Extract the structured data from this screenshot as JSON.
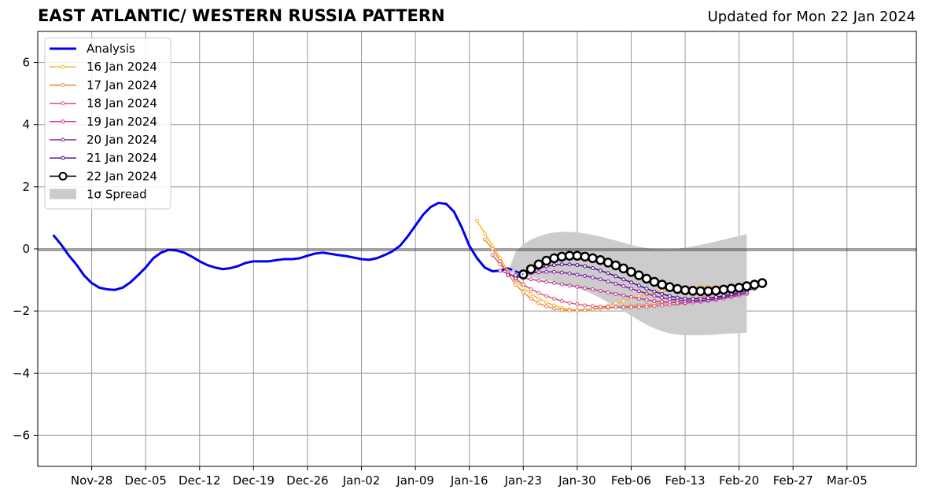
{
  "title": "EAST ATLANTIC/ WESTERN RUSSIA PATTERN",
  "subtitle": "Updated for Mon 22 Jan 2024",
  "chart_data": {
    "type": "line",
    "title": "EAST ATLANTIC/ WESTERN RUSSIA PATTERN",
    "subtitle": "Updated for Mon 22 Jan 2024",
    "xlabel": "",
    "ylabel": "",
    "x_start": "2023-11-21",
    "x_end": "2024-03-14",
    "ylim": [
      -7,
      7
    ],
    "yticks": [
      -6,
      -4,
      -2,
      0,
      2,
      4,
      6
    ],
    "xticks": [
      {
        "label": "Nov-28",
        "date": "2023-11-28"
      },
      {
        "label": "Dec-05",
        "date": "2023-12-05"
      },
      {
        "label": "Dec-12",
        "date": "2023-12-12"
      },
      {
        "label": "Dec-19",
        "date": "2023-12-19"
      },
      {
        "label": "Dec-26",
        "date": "2023-12-26"
      },
      {
        "label": "Jan-02",
        "date": "2024-01-02"
      },
      {
        "label": "Jan-09",
        "date": "2024-01-09"
      },
      {
        "label": "Jan-16",
        "date": "2024-01-16"
      },
      {
        "label": "Jan-23",
        "date": "2024-01-23"
      },
      {
        "label": "Jan-30",
        "date": "2024-01-30"
      },
      {
        "label": "Feb-06",
        "date": "2024-02-06"
      },
      {
        "label": "Feb-13",
        "date": "2024-02-13"
      },
      {
        "label": "Feb-20",
        "date": "2024-02-20"
      },
      {
        "label": "Feb-27",
        "date": "2024-02-27"
      },
      {
        "label": "Mar-05",
        "date": "2024-03-05"
      }
    ],
    "grid": true,
    "legend_position": "top-left",
    "analysis": {
      "name": "Analysis",
      "color": "#0000ee",
      "start_date": "2023-11-23",
      "values": [
        0.45,
        0.15,
        -0.2,
        -0.5,
        -0.85,
        -1.1,
        -1.25,
        -1.3,
        -1.32,
        -1.25,
        -1.08,
        -0.85,
        -0.6,
        -0.3,
        -0.12,
        -0.03,
        -0.05,
        -0.12,
        -0.25,
        -0.4,
        -0.52,
        -0.6,
        -0.65,
        -0.62,
        -0.55,
        -0.45,
        -0.4,
        -0.4,
        -0.4,
        -0.36,
        -0.33,
        -0.33,
        -0.3,
        -0.22,
        -0.15,
        -0.12,
        -0.16,
        -0.2,
        -0.23,
        -0.28,
        -0.33,
        -0.35,
        -0.3,
        -0.2,
        -0.08,
        0.1,
        0.4,
        0.75,
        1.1,
        1.35,
        1.48,
        1.45,
        1.2,
        0.7,
        0.1,
        -0.3,
        -0.6,
        -0.72,
        -0.7,
        -0.62
      ]
    },
    "spread": {
      "name": "1σ Spread",
      "color": "#cccccc",
      "start_date": "2024-01-21",
      "upper": [
        -0.75,
        -0.1,
        0.15,
        0.3,
        0.4,
        0.48,
        0.53,
        0.55,
        0.55,
        0.53,
        0.5,
        0.45,
        0.4,
        0.33,
        0.27,
        0.2,
        0.13,
        0.07,
        0.03,
        0.0,
        -0.02,
        -0.02,
        0.0,
        0.04,
        0.08,
        0.13,
        0.18,
        0.24,
        0.3,
        0.36,
        0.42,
        0.48
      ],
      "lower": [
        -0.75,
        -0.8,
        -0.85,
        -0.9,
        -0.95,
        -1.0,
        -1.05,
        -1.12,
        -1.18,
        -1.26,
        -1.35,
        -1.46,
        -1.58,
        -1.72,
        -1.86,
        -2.0,
        -2.15,
        -2.3,
        -2.44,
        -2.56,
        -2.65,
        -2.72,
        -2.76,
        -2.78,
        -2.78,
        -2.78,
        -2.77,
        -2.76,
        -2.74,
        -2.72,
        -2.71,
        -2.7
      ]
    },
    "series": [
      {
        "name": "16 Jan 2024",
        "color": "#f7b731",
        "start_date": "2024-01-17",
        "values": [
          0.9,
          0.5,
          0.1,
          -0.3,
          -0.7,
          -1.0,
          -1.25,
          -1.45,
          -1.6,
          -1.72,
          -1.82,
          -1.9,
          -1.95,
          -1.97,
          -1.96,
          -1.93,
          -1.88,
          -1.82,
          -1.75,
          -1.68,
          -1.6,
          -1.53,
          -1.46,
          -1.4,
          -1.35,
          -1.3,
          -1.27,
          -1.25,
          -1.24,
          -1.23,
          -1.22,
          -1.22,
          -1.22
        ]
      },
      {
        "name": "17 Jan 2024",
        "color": "#ee8844",
        "start_date": "2024-01-18",
        "values": [
          0.3,
          0.0,
          -0.4,
          -0.8,
          -1.15,
          -1.4,
          -1.6,
          -1.75,
          -1.85,
          -1.92,
          -1.96,
          -1.98,
          -1.98,
          -1.97,
          -1.95,
          -1.92,
          -1.9,
          -1.88,
          -1.86,
          -1.84,
          -1.82,
          -1.8,
          -1.78,
          -1.75,
          -1.72,
          -1.68,
          -1.64,
          -1.6,
          -1.55,
          -1.5,
          -1.45,
          -1.4,
          -1.36
        ]
      },
      {
        "name": "18 Jan 2024",
        "color": "#dd5577",
        "start_date": "2024-01-19",
        "values": [
          -0.2,
          -0.5,
          -0.75,
          -0.95,
          -1.15,
          -1.3,
          -1.42,
          -1.52,
          -1.6,
          -1.68,
          -1.74,
          -1.78,
          -1.82,
          -1.84,
          -1.86,
          -1.87,
          -1.88,
          -1.88,
          -1.88,
          -1.87,
          -1.86,
          -1.84,
          -1.82,
          -1.8,
          -1.78,
          -1.75,
          -1.72,
          -1.68,
          -1.64,
          -1.6,
          -1.56,
          -1.52,
          -1.48
        ]
      },
      {
        "name": "19 Jan 2024",
        "color": "#c03a90",
        "start_date": "2024-01-20",
        "values": [
          -0.7,
          -0.8,
          -0.88,
          -0.94,
          -0.98,
          -1.02,
          -1.06,
          -1.1,
          -1.14,
          -1.18,
          -1.22,
          -1.26,
          -1.3,
          -1.35,
          -1.4,
          -1.45,
          -1.5,
          -1.55,
          -1.6,
          -1.64,
          -1.68,
          -1.7,
          -1.72,
          -1.73,
          -1.73,
          -1.72,
          -1.7,
          -1.67,
          -1.64,
          -1.6,
          -1.55,
          -1.5,
          -1.45
        ]
      },
      {
        "name": "20 Jan 2024",
        "color": "#8a1ca6",
        "start_date": "2024-01-21",
        "values": [
          -0.85,
          -0.85,
          -0.82,
          -0.78,
          -0.75,
          -0.74,
          -0.74,
          -0.76,
          -0.79,
          -0.83,
          -0.87,
          -0.92,
          -0.98,
          -1.05,
          -1.12,
          -1.2,
          -1.28,
          -1.36,
          -1.44,
          -1.51,
          -1.57,
          -1.62,
          -1.65,
          -1.67,
          -1.67,
          -1.66,
          -1.64,
          -1.6,
          -1.55,
          -1.5,
          -1.45,
          -1.4
        ]
      },
      {
        "name": "21 Jan 2024",
        "color": "#4a0c8c",
        "start_date": "2024-01-22",
        "values": [
          -0.95,
          -0.82,
          -0.7,
          -0.62,
          -0.56,
          -0.52,
          -0.5,
          -0.5,
          -0.52,
          -0.56,
          -0.62,
          -0.7,
          -0.78,
          -0.88,
          -0.98,
          -1.08,
          -1.18,
          -1.28,
          -1.37,
          -1.45,
          -1.52,
          -1.57,
          -1.6,
          -1.61,
          -1.6,
          -1.58,
          -1.55,
          -1.51,
          -1.46,
          -1.4,
          -1.34,
          -1.28
        ]
      },
      {
        "name": "22 Jan 2024",
        "color": "#000000",
        "start_date": "2024-01-23",
        "values": [
          -0.82,
          -0.65,
          -0.5,
          -0.38,
          -0.3,
          -0.25,
          -0.22,
          -0.22,
          -0.25,
          -0.3,
          -0.36,
          -0.44,
          -0.53,
          -0.63,
          -0.74,
          -0.85,
          -0.96,
          -1.06,
          -1.15,
          -1.23,
          -1.29,
          -1.33,
          -1.35,
          -1.36,
          -1.36,
          -1.34,
          -1.31,
          -1.28,
          -1.25,
          -1.2,
          -1.15,
          -1.1
        ]
      }
    ]
  }
}
